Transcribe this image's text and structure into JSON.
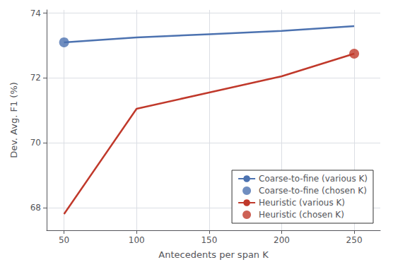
{
  "chart_data": {
    "type": "line",
    "x_label": "Antecedents per span K",
    "y_label": "Dev. Avg. F1 (%)",
    "xlim": [
      38,
      268
    ],
    "ylim": [
      67.3,
      74.1
    ],
    "xticks": [
      50,
      100,
      150,
      200,
      250
    ],
    "yticks": [
      68,
      70,
      72,
      74
    ],
    "grid": true,
    "legend": "lower right",
    "series": [
      {
        "name": "Coarse-to-fine (various K)",
        "type": "line",
        "color": "#4c72b0",
        "line_style": "solid",
        "x": [
          50,
          100,
          150,
          200,
          250
        ],
        "values": [
          73.1,
          73.25,
          73.35,
          73.45,
          73.6
        ]
      },
      {
        "name": "Coarse-to-fine (chosen K)",
        "type": "scatter",
        "color": "#4c72b0",
        "marker": "circle",
        "x": [
          50
        ],
        "values": [
          73.1
        ]
      },
      {
        "name": "Heuristic (various K)",
        "type": "line",
        "color": "#c0392b",
        "line_style": "solid",
        "x": [
          50,
          100,
          150,
          200,
          250
        ],
        "values": [
          67.8,
          71.05,
          71.55,
          72.05,
          72.75
        ]
      },
      {
        "name": "Heuristic (chosen K)",
        "type": "scatter",
        "color": "#c0392b",
        "marker": "circle",
        "x": [
          250
        ],
        "values": [
          72.75
        ]
      }
    ]
  }
}
